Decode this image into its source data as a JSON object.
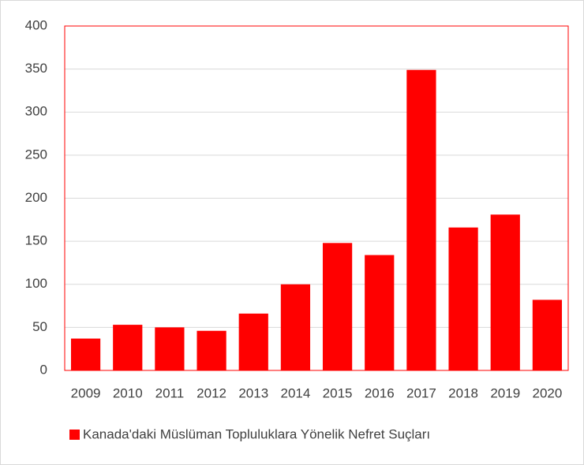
{
  "chart_data": {
    "type": "bar",
    "categories": [
      "2009",
      "2010",
      "2011",
      "2012",
      "2013",
      "2014",
      "2015",
      "2016",
      "2017",
      "2018",
      "2019",
      "2020"
    ],
    "series": [
      {
        "name": "Kanada'daki Müslüman Topluluklara Yönelik Nefret Suçları",
        "color": "#ff0000",
        "values": [
          37,
          53,
          50,
          46,
          66,
          100,
          148,
          134,
          349,
          166,
          181,
          82
        ]
      }
    ],
    "ylim": [
      0,
      400
    ],
    "yticks": [
      0,
      50,
      100,
      150,
      200,
      250,
      300,
      350,
      400
    ],
    "grid": true,
    "legend": "bottom"
  }
}
